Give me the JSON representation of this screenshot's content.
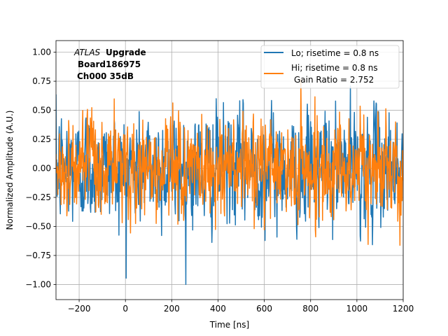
{
  "chart_data": {
    "type": "line",
    "title": "",
    "xlabel": "Time [ns]",
    "ylabel": "Normalized Amplitude (A.U.)",
    "xlim": [
      -300,
      1200
    ],
    "ylim": [
      -1.13,
      1.1
    ],
    "x_ticks": [
      -200,
      0,
      200,
      400,
      600,
      800,
      1000,
      1200
    ],
    "x_tick_labels": [
      "−200",
      "0",
      "200",
      "400",
      "600",
      "800",
      "1000",
      "1200"
    ],
    "y_ticks": [
      -1.0,
      -0.75,
      -0.5,
      -0.25,
      0.0,
      0.25,
      0.5,
      0.75,
      1.0
    ],
    "y_tick_labels": [
      "−1.00",
      "−0.75",
      "−0.50",
      "−0.25",
      "0.00",
      "0.25",
      "0.50",
      "0.75",
      "1.00"
    ],
    "grid": true,
    "legend_position": "top-right",
    "annotation": {
      "atlas": "ATLAS",
      "upgrade": "Upgrade",
      "line2": "Board186975",
      "line3": "Ch000 35dB"
    },
    "series": [
      {
        "name": "Lo; risetime = 0.8 ns",
        "legend_label": "Lo; risetime = 0.8 ns",
        "color": "#1f77b4",
        "x_start": -300,
        "x_step": 1.5625,
        "envelope_max": 1.0,
        "envelope_min": -1.0,
        "std": 0.27
      },
      {
        "name": "Hi; risetime = 0.8 ns",
        "legend_label": "Hi; risetime = 0.8 ns",
        "legend_label_line2": "Gain Ratio = 2.752",
        "color": "#ff7f0e",
        "x_start": -300,
        "x_step": 1.5625,
        "envelope_max": 0.88,
        "envelope_min": -0.94,
        "std": 0.24
      }
    ]
  }
}
